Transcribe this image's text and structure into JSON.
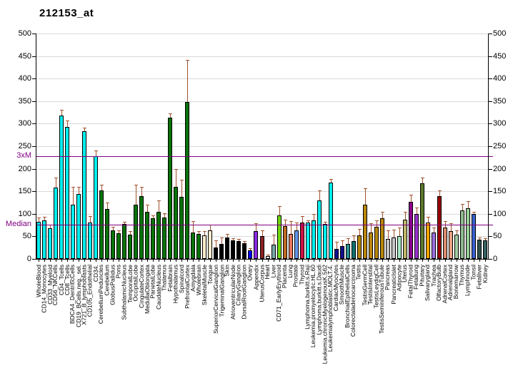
{
  "title": "212153_at",
  "y_axis": {
    "tick_labels": [
      "0",
      "50",
      "100",
      "150",
      "200",
      "250",
      "300",
      "350",
      "400",
      "450",
      "500"
    ],
    "min": 0,
    "max": 500
  },
  "reference_lines": [
    {
      "label": "Median",
      "value": 76,
      "color": "#800080"
    },
    {
      "label": "3xM",
      "value": 228,
      "color": "#800080"
    }
  ],
  "error_bar_color": "#A0522D",
  "chart_data": {
    "type": "bar",
    "title": "212153_at",
    "xlabel": "",
    "ylabel": "",
    "ylim": [
      0,
      500
    ],
    "grid": "horizontal",
    "legend": "none",
    "categories": [
      "WholeBlood",
      "CD14_Monocytes",
      "CD33_Myeloid",
      "CD56_NKCells",
      "CD4_Tcells",
      "CD8_Tcells",
      "BDCA4_DentriticCells",
      "CD19_BCells.neg._sel.",
      "X721_B_lymphoblasts",
      "CD105_Endothelial",
      "CD34.",
      "CerebellumPeduncles",
      "Cerebellum",
      "GlobusPallidus",
      "Pons",
      "SubthalamicNucleus",
      "TemporalLobe",
      "OccipitalLobe",
      "CingulateCortex",
      "MedullaOblongata",
      "ParietalLobe",
      "CaudateNucleus",
      "Thalamus",
      "Fetalbrain",
      "Hypothalamus",
      "Spinalcord",
      "PrefrontalCortex",
      "Amygdala",
      "Wholebrain",
      "SkeletalMuscle",
      "Tongue",
      "SuperiorCervicalGanglion",
      "TrigeminalGanglion",
      "Skin",
      "AtrioventricularNode",
      "CiliaryGanglion",
      "DorsalRootGanglion",
      "Ovary",
      "Appendix",
      "UterusCorpus",
      "Heart",
      "Liver",
      "CD71_EarlyErythroid",
      "Placenta",
      "Lung",
      "Prostate",
      "Thyroid",
      "Lymphoma.burkitt.s.Raji",
      "Leukemia.promyelocytic.HL.60",
      "Lymphoma.burkitt.s.Daudi",
      "Leukemia.chronicMyelogenousK.562",
      "Leukemialymphoblastic.MOLT.4.",
      "CardiacMyocytes",
      "SmoothMuscle",
      "BronchialEpithelialCells",
      "Colorectaladenocarcinoma",
      "Testis",
      "TestisGermCell",
      "TestisInterstital",
      "TestisLeydigCell",
      "TestisSeminiferousTubule",
      "Pancreas",
      "PancreaticIslet",
      "Adipocyte",
      "Uterus",
      "FetalThyroid",
      "Fetallung",
      "Pituitary",
      "Salivarygland",
      "Trachea",
      "OlfactoryBulb",
      "AdrenalCortex",
      "Adrenalgland",
      "Bonemarrow",
      "Thymus",
      "Lymphnode",
      "Tonsil",
      "Fetalliver",
      "Kidney"
    ],
    "values": [
      83,
      85,
      68,
      158,
      318,
      293,
      121,
      144,
      284,
      80,
      228,
      152,
      111,
      64,
      57,
      78,
      54,
      120,
      140,
      104,
      90,
      104,
      91,
      314,
      160,
      137,
      348,
      59,
      56,
      52,
      64,
      26,
      33,
      48,
      41,
      40,
      35,
      19,
      62,
      50,
      7,
      32,
      96,
      73,
      56,
      64,
      80,
      81,
      86,
      130,
      77,
      169,
      22,
      29,
      33,
      40,
      53,
      121,
      59,
      71,
      90,
      44,
      47,
      51,
      87,
      126,
      100,
      167,
      80,
      59,
      139,
      70,
      61,
      54,
      107,
      112,
      99,
      43,
      41
    ],
    "errors_up": [
      10,
      8,
      8,
      22,
      12,
      15,
      40,
      16,
      8,
      15,
      12,
      12,
      14,
      8,
      6,
      4,
      8,
      45,
      21,
      16,
      6,
      26,
      9,
      10,
      40,
      38,
      94,
      26,
      6,
      10,
      12,
      16,
      15,
      8,
      5,
      5,
      5,
      4,
      18,
      12,
      3,
      22,
      20,
      15,
      29,
      17,
      15,
      5,
      14,
      22,
      5,
      8,
      16,
      13,
      12,
      12,
      15,
      37,
      21,
      14,
      15,
      19,
      18,
      19,
      17,
      16,
      15,
      13,
      12,
      11,
      12,
      15,
      17,
      10,
      15,
      16,
      5,
      5,
      4
    ],
    "bar_colors": [
      "#00EFEF",
      "#00EFEF",
      "#00EFEF",
      "#00EFEF",
      "#00EFEF",
      "#00EFEF",
      "#00EFEF",
      "#00EFEF",
      "#00EFEF",
      "#00EFEF",
      "#00EFEF",
      "#087308",
      "#087308",
      "#087308",
      "#087308",
      "#087308",
      "#087308",
      "#087308",
      "#087308",
      "#087308",
      "#087308",
      "#087308",
      "#087308",
      "#087308",
      "#087308",
      "#087308",
      "#087308",
      "#087308",
      "#087308",
      "#FFEBCD",
      "#FFEBCD",
      "#000000",
      "#000000",
      "#000000",
      "#000000",
      "#000000",
      "#000000",
      "#0000FF",
      "#8A2BE2",
      "#8B2323",
      "#FFE4E1",
      "#79A8A8",
      "#6FD80A",
      "#BE6B24",
      "#E8745C",
      "#6495ED",
      "#CE1246",
      "#00EFEF",
      "#00EFEF",
      "#00EFEF",
      "#00EFEF",
      "#00EFEF",
      "#10108F",
      "#10108F",
      "#2D9292",
      "#107070",
      "#B8860B",
      "#B8860B",
      "#B8860B",
      "#B8860B",
      "#B8860B",
      "#C0C0C0",
      "#C6C6C6",
      "#A9E9C5",
      "#BDB76B",
      "#8B008B",
      "#9932CC",
      "#5C7A2E",
      "#FFA500",
      "#9B6FDF",
      "#990000",
      "#DC8C6C",
      "#E8A184",
      "#A3CBA3",
      "#8FBC8F",
      "#97CD97",
      "#3A5FCD",
      "#2F4F4F",
      "#35605E"
    ]
  }
}
